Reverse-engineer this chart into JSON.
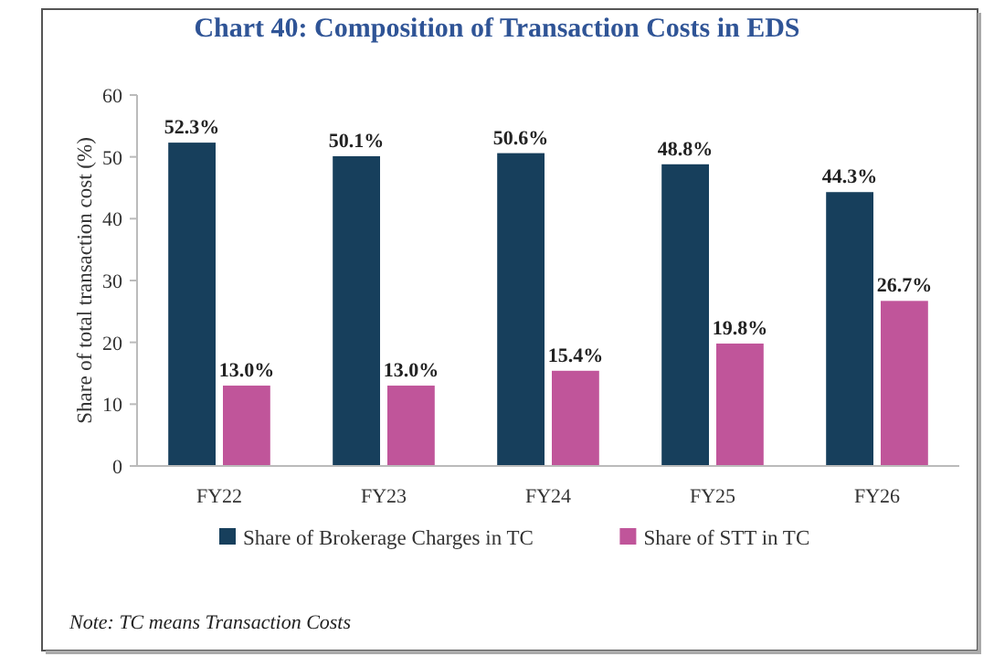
{
  "chart_data": {
    "type": "bar",
    "title": "Chart 40: Composition of Transaction Costs in EDS",
    "ylabel": "Share of total transaction cost (%)",
    "categories": [
      "FY22",
      "FY23",
      "FY24",
      "FY25",
      "FY26"
    ],
    "series": [
      {
        "name": "Share of Brokerage Charges in TC",
        "color": "#173f5c",
        "values": [
          52.3,
          50.1,
          50.6,
          48.8,
          44.3
        ],
        "value_labels": [
          "52.3%",
          "50.1%",
          "50.6%",
          "48.8%",
          "44.3%"
        ]
      },
      {
        "name": "Share of STT in TC",
        "color": "#c0559a",
        "values": [
          13.0,
          13.0,
          15.4,
          19.8,
          26.7
        ],
        "value_labels": [
          "13.0%",
          "13.0%",
          "15.4%",
          "19.8%",
          "26.7%"
        ]
      }
    ],
    "ylim": [
      0,
      60
    ],
    "yticks": [
      0,
      10,
      20,
      30,
      40,
      50,
      60
    ],
    "grid": false,
    "legend": "bottom",
    "annotations": [
      "Note: TC means Transaction Costs"
    ]
  }
}
